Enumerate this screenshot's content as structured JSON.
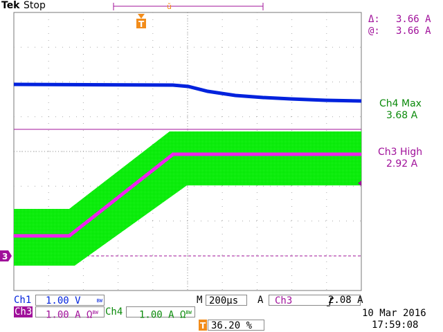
{
  "header": {
    "brand": "Tek",
    "status": "Stop"
  },
  "trigger_marker": {
    "label": "T"
  },
  "ground_marker": {
    "label": "3"
  },
  "cursor": {
    "delta_label": "Δ:",
    "delta_value": "3.66 A",
    "at_label": "@:",
    "at_value": "3.66 A"
  },
  "measurements": [
    {
      "name": "Ch4 Max",
      "value": "3.68 A",
      "color": "#0a8a0a"
    },
    {
      "name": "Ch3 High",
      "value": "2.92 A",
      "color": "#a0109a"
    }
  ],
  "channels": {
    "ch1": {
      "label": "Ch1",
      "scale": "1.00 V",
      "bw": "BW"
    },
    "ch3": {
      "label": "Ch3",
      "scale": "1.00 A",
      "suffix": "Ω",
      "bw": "BW"
    },
    "ch4": {
      "label": "Ch4",
      "scale": "1.00 A",
      "suffix": "Ω",
      "bw": "BW"
    }
  },
  "timebase": {
    "label": "M",
    "value": "200µs"
  },
  "trigger": {
    "coupling": "A",
    "source": "Ch3",
    "slope_icon": "rising-edge-icon",
    "level": "2.08 A"
  },
  "horizontal_position": {
    "label": "T",
    "value": "36.20 %"
  },
  "datetime": {
    "date": "10 Mar 2016",
    "time": "17:59:08"
  },
  "colors": {
    "ch3": "#ee22ee",
    "ch4": "#0022dd",
    "ch_green": "#00e600",
    "accent": "#a0109a",
    "trigger": "#f28c1a"
  }
}
